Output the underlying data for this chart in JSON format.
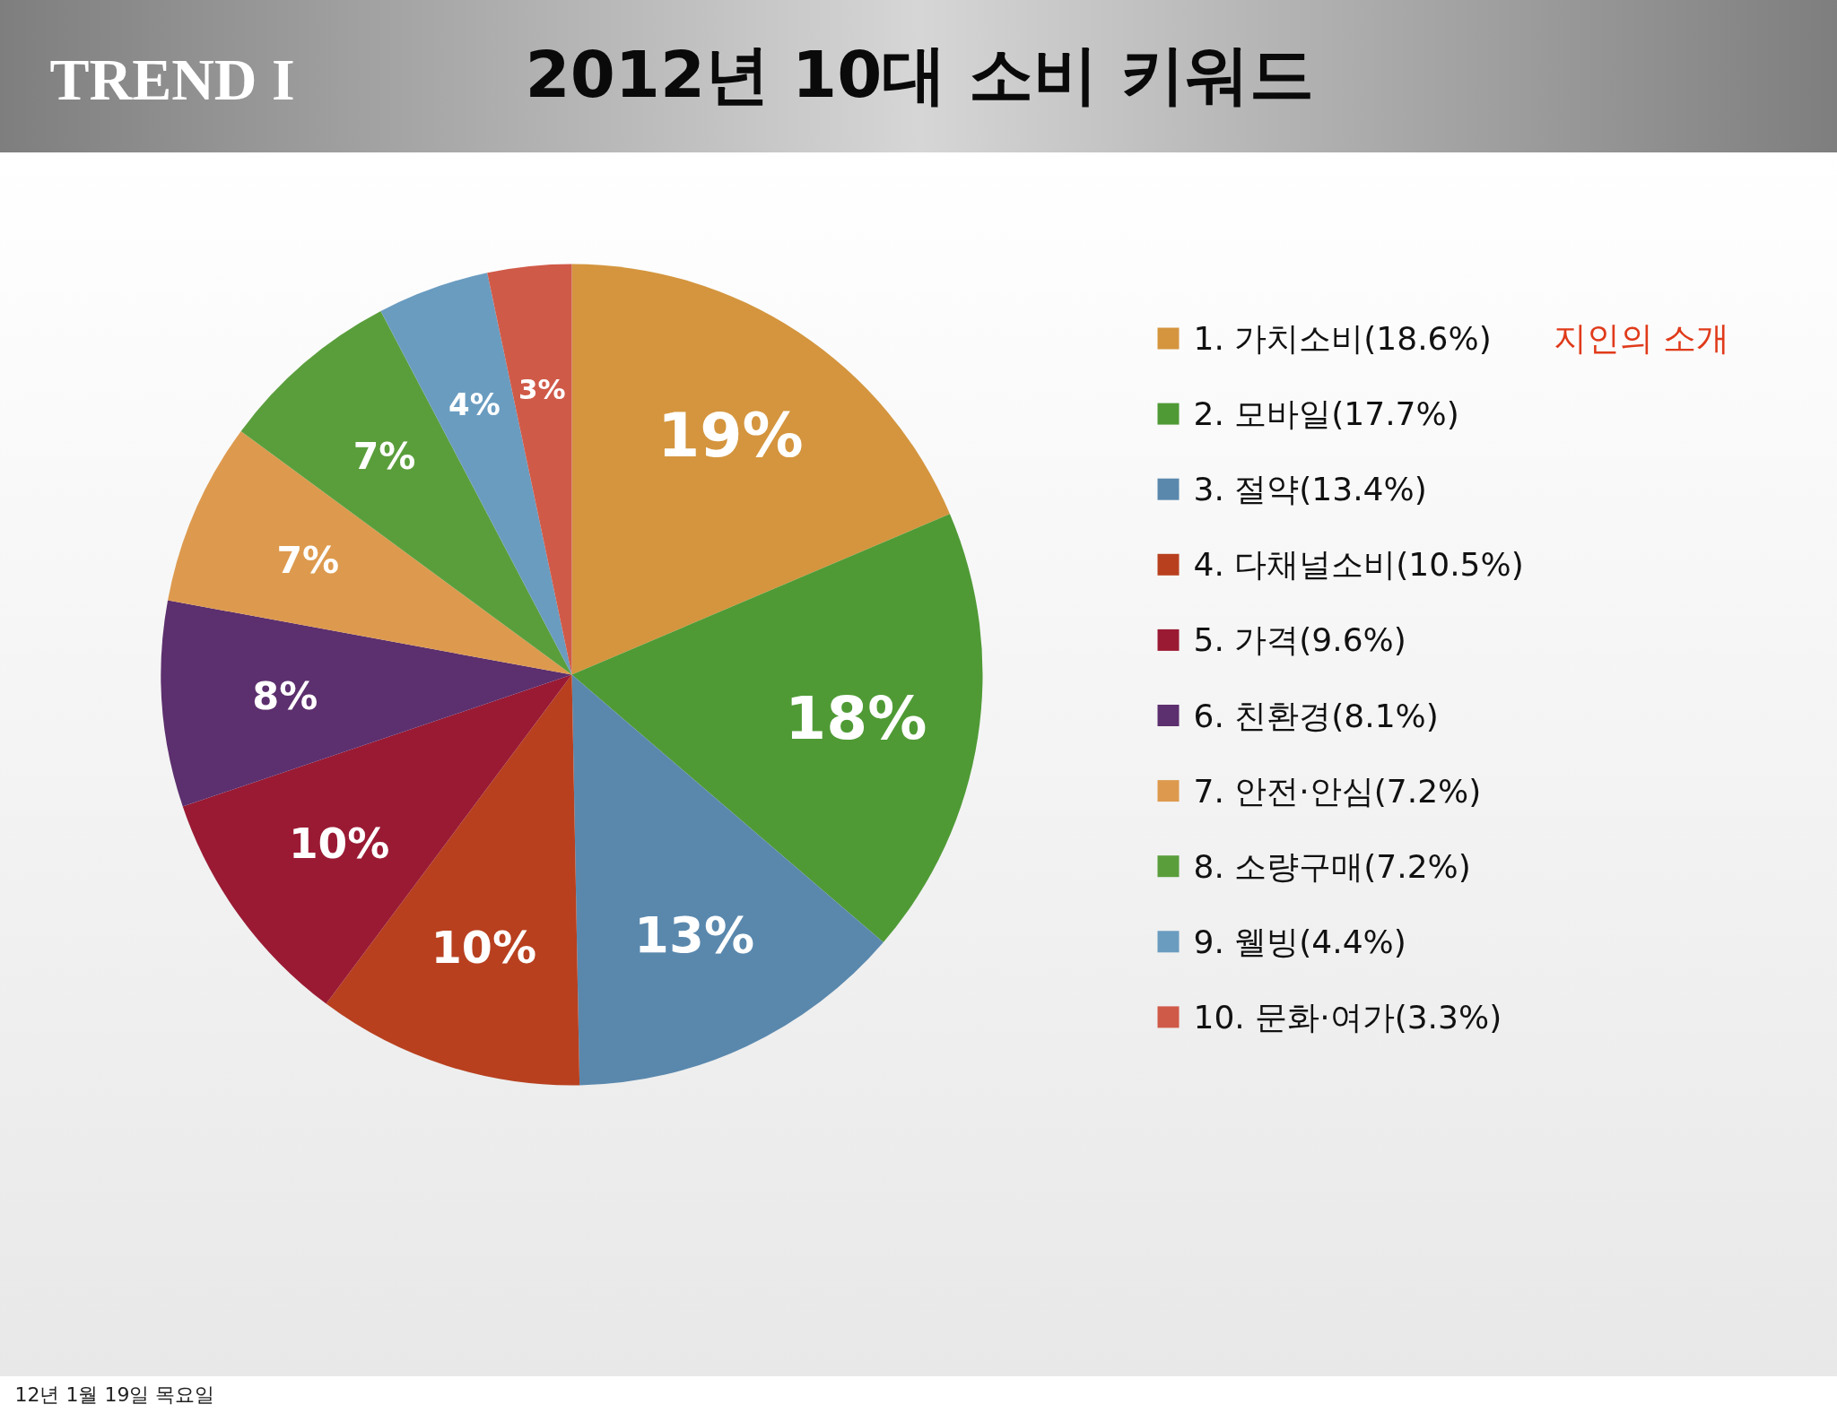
{
  "chart_data": {
    "type": "pie",
    "title": "2012년 10대 소비 키워드",
    "subtitle": "TREND I",
    "categories": [
      "1. 가치소비(18.6%)",
      "2. 모바일(17.7%)",
      "3. 절약(13.4%)",
      "4. 다채널소비(10.5%)",
      "5. 가격(9.6%)",
      "6. 친환경(8.1%)",
      "7. 안전·안심(7.2%)",
      "8. 소량구매(7.2%)",
      "9. 웰빙(4.4%)",
      "10. 문화·여가(3.3%)"
    ],
    "values": [
      18.6,
      17.7,
      13.4,
      10.5,
      9.6,
      8.1,
      7.2,
      7.2,
      4.4,
      3.3
    ],
    "value_labels": [
      "19%",
      "18%",
      "13%",
      "10%",
      "10%",
      "8%",
      "7%",
      "7%",
      "4%",
      "3%"
    ],
    "colors": [
      "#d4953e",
      "#4f9a35",
      "#5a88ad",
      "#b8401f",
      "#9a1a34",
      "#5c2f6e",
      "#dd9a4e",
      "#5a9e3c",
      "#6a9cc0",
      "#d05a48"
    ],
    "legend": "right",
    "annotations": [
      "지인의 소개",
      "12년 1월 19일 목요일"
    ]
  }
}
